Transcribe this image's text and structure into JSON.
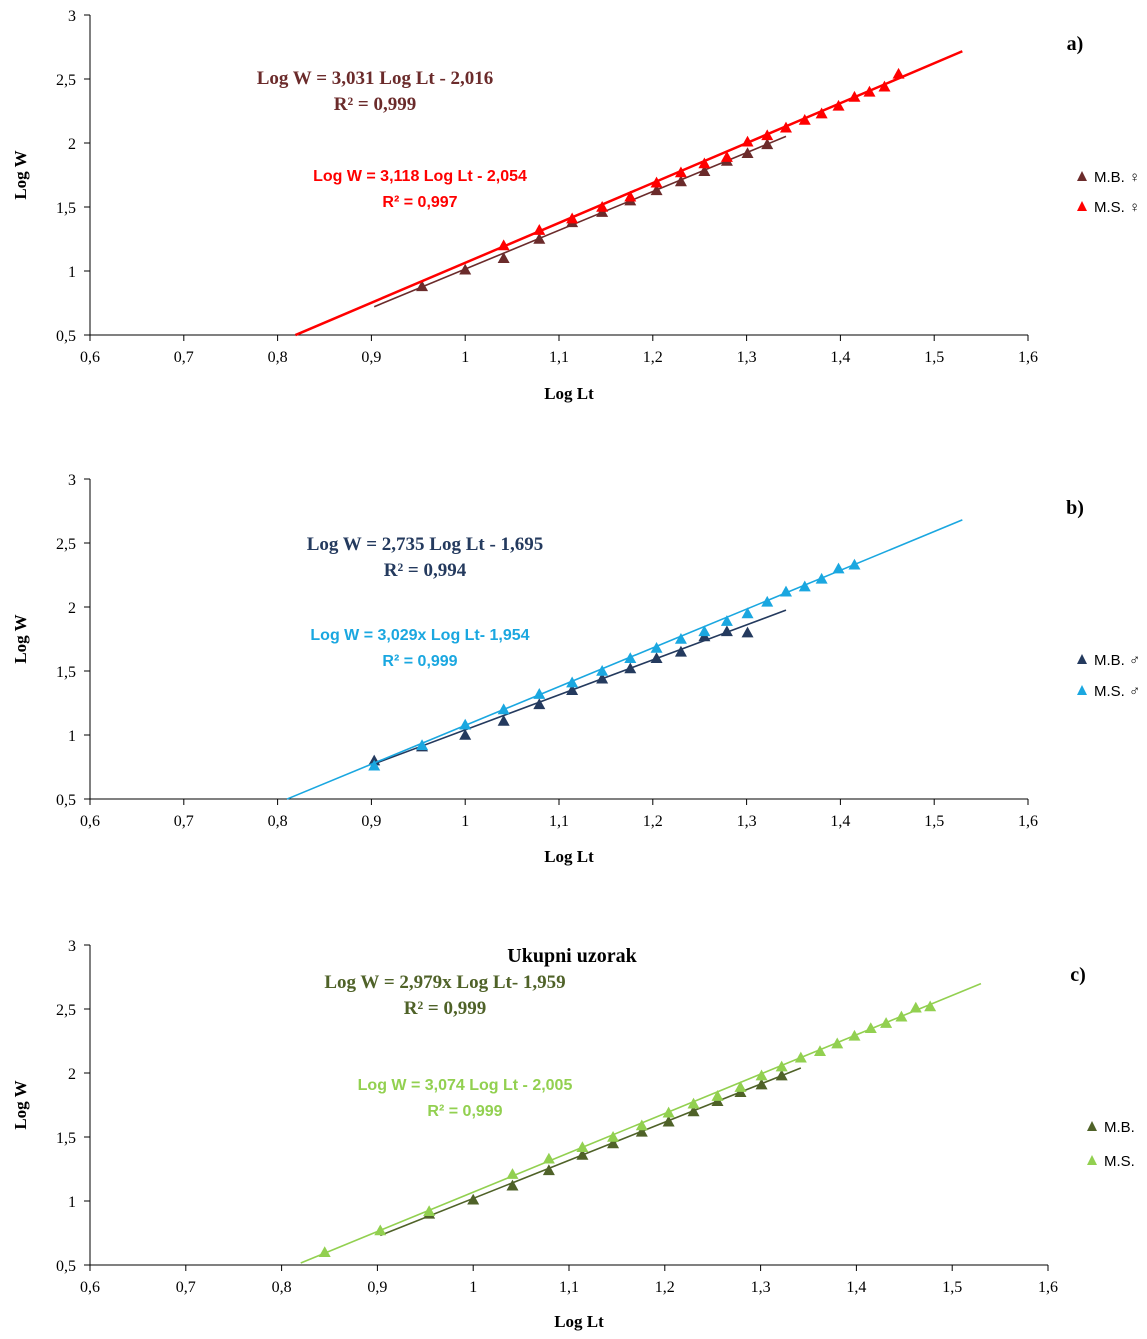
{
  "chart_data": [
    {
      "type": "scatter",
      "panel_letter": "a)",
      "title": "",
      "xlabel": "Log Lt",
      "ylabel": "Log W",
      "xlim": [
        0.6,
        1.6
      ],
      "ylim": [
        0.5,
        3
      ],
      "x_ticks": [
        "0,6",
        "0,7",
        "0,8",
        "0,9",
        "1",
        "1,1",
        "1,2",
        "1,3",
        "1,4",
        "1,5",
        "1,6"
      ],
      "y_ticks": [
        "0,5",
        "1",
        "1,5",
        "2",
        "2,5",
        "3"
      ],
      "grid": false,
      "legend_position": "right",
      "series": [
        {
          "name": "M.B. ♀",
          "color": "#6b2b2b",
          "marker": "triangle",
          "x": [
            0.954,
            1.0,
            1.041,
            1.079,
            1.114,
            1.146,
            1.176,
            1.204,
            1.23,
            1.255,
            1.279,
            1.301,
            1.322
          ],
          "y": [
            0.88,
            1.01,
            1.1,
            1.25,
            1.38,
            1.46,
            1.55,
            1.63,
            1.7,
            1.78,
            1.86,
            1.92,
            1.99
          ],
          "trend": {
            "equation": "Log W = 3,031 Log Lt - 2,016",
            "r2": "R² = 0,999",
            "slope": 3.031,
            "intercept": -2.016,
            "x_range": [
              0.903,
              1.342
            ]
          }
        },
        {
          "name": "M.S. ♀",
          "color": "#ff0000",
          "marker": "triangle",
          "x": [
            1.041,
            1.079,
            1.114,
            1.146,
            1.176,
            1.204,
            1.23,
            1.255,
            1.279,
            1.301,
            1.322,
            1.342,
            1.362,
            1.38,
            1.398,
            1.415,
            1.431,
            1.447,
            1.462
          ],
          "y": [
            1.2,
            1.32,
            1.41,
            1.5,
            1.58,
            1.69,
            1.77,
            1.84,
            1.89,
            2.01,
            2.06,
            2.12,
            2.18,
            2.23,
            2.29,
            2.36,
            2.4,
            2.44,
            2.54
          ],
          "trend": {
            "equation": "Log W = 3,118 Log Lt - 2,054",
            "r2": "R² = 0,997",
            "slope": 3.118,
            "intercept": -2.054,
            "x_range": [
              0.819,
              1.53
            ]
          }
        }
      ]
    },
    {
      "type": "scatter",
      "panel_letter": "b)",
      "title": "",
      "xlabel": "Log Lt",
      "ylabel": "Log W",
      "xlim": [
        0.6,
        1.6
      ],
      "ylim": [
        0.5,
        3
      ],
      "x_ticks": [
        "0,6",
        "0,7",
        "0,8",
        "0,9",
        "1",
        "1,1",
        "1,2",
        "1,3",
        "1,4",
        "1,5",
        "1,6"
      ],
      "y_ticks": [
        "0,5",
        "1",
        "1,5",
        "2",
        "2,5",
        "3"
      ],
      "grid": false,
      "legend_position": "right",
      "series": [
        {
          "name": "M.B. ♂",
          "color": "#243a5e",
          "marker": "triangle",
          "x": [
            0.903,
            0.954,
            1.0,
            1.041,
            1.079,
            1.114,
            1.146,
            1.176,
            1.204,
            1.23,
            1.255,
            1.279,
            1.301
          ],
          "y": [
            0.8,
            0.91,
            1.0,
            1.11,
            1.24,
            1.35,
            1.44,
            1.52,
            1.6,
            1.65,
            1.77,
            1.81,
            1.8
          ],
          "trend": {
            "equation": "Log W  = 2,735 Log Lt - 1,695",
            "r2": "R² = 0,994",
            "slope": 2.735,
            "intercept": -1.695,
            "x_range": [
              0.903,
              1.342
            ]
          }
        },
        {
          "name": "M.S. ♂",
          "color": "#1aa7e0",
          "marker": "triangle",
          "x": [
            0.903,
            0.954,
            1.0,
            1.041,
            1.079,
            1.114,
            1.146,
            1.176,
            1.204,
            1.23,
            1.255,
            1.279,
            1.301,
            1.322,
            1.342,
            1.362,
            1.38,
            1.398,
            1.415
          ],
          "y": [
            0.76,
            0.92,
            1.08,
            1.2,
            1.32,
            1.41,
            1.5,
            1.6,
            1.68,
            1.75,
            1.81,
            1.89,
            1.95,
            2.04,
            2.12,
            2.16,
            2.22,
            2.3,
            2.33
          ],
          "trend": {
            "equation": "Log W  = 3,029x Log Lt- 1,954",
            "r2": "R² = 0,999",
            "slope": 3.029,
            "intercept": -1.954,
            "x_range": [
              0.81,
              1.53
            ]
          }
        }
      ]
    },
    {
      "type": "scatter",
      "panel_letter": "c)",
      "title": "Ukupni uzorak",
      "xlabel": "Log Lt",
      "ylabel": "Log W",
      "xlim": [
        0.6,
        1.6
      ],
      "ylim": [
        0.5,
        3
      ],
      "x_ticks": [
        "0,6",
        "0,7",
        "0,8",
        "0,9",
        "1",
        "1,1",
        "1,2",
        "1,3",
        "1,4",
        "1,5",
        "1,6"
      ],
      "y_ticks": [
        "0,5",
        "1",
        "1,5",
        "2",
        "2,5",
        "3"
      ],
      "grid": false,
      "legend_position": "right",
      "series": [
        {
          "name": "M.B.",
          "color": "#4f6228",
          "marker": "triangle",
          "x": [
            0.954,
            1.0,
            1.041,
            1.079,
            1.114,
            1.146,
            1.176,
            1.204,
            1.23,
            1.255,
            1.279,
            1.301,
            1.322
          ],
          "y": [
            0.9,
            1.01,
            1.12,
            1.24,
            1.36,
            1.45,
            1.54,
            1.62,
            1.7,
            1.78,
            1.85,
            1.91,
            1.98
          ],
          "trend": {
            "equation": "Log W  = 2,979x Log Lt- 1,959",
            "r2": "R² = 0,999",
            "slope": 2.979,
            "intercept": -1.959,
            "x_range": [
              0.903,
              1.342
            ]
          }
        },
        {
          "name": "M.S.",
          "color": "#92d050",
          "marker": "triangle",
          "x": [
            0.845,
            0.903,
            0.954,
            1.041,
            1.079,
            1.114,
            1.146,
            1.176,
            1.204,
            1.23,
            1.255,
            1.279,
            1.301,
            1.322,
            1.342,
            1.362,
            1.38,
            1.398,
            1.415,
            1.431,
            1.447,
            1.462,
            1.477
          ],
          "y": [
            0.6,
            0.77,
            0.92,
            1.21,
            1.33,
            1.42,
            1.5,
            1.59,
            1.69,
            1.76,
            1.82,
            1.89,
            1.98,
            2.05,
            2.12,
            2.17,
            2.23,
            2.29,
            2.35,
            2.39,
            2.44,
            2.51,
            2.52
          ],
          "trend": {
            "equation": "Log W  = 3,074 Log Lt - 2,005",
            "r2": "R² = 0,999",
            "slope": 3.074,
            "intercept": -2.005,
            "x_range": [
              0.82,
              1.53
            ]
          }
        }
      ]
    }
  ]
}
